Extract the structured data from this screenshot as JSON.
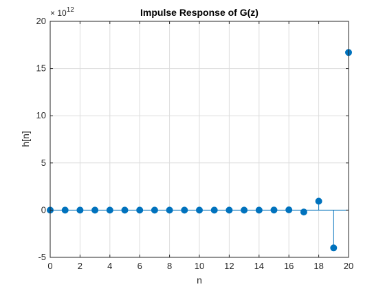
{
  "chart_data": {
    "type": "stem",
    "title": "Impulse Response of G(z)",
    "xlabel": "n",
    "ylabel": "h[n]",
    "y_exponent_base": "× 10",
    "y_exponent_power": "12",
    "xlim": [
      0,
      20
    ],
    "ylim": [
      -5,
      20
    ],
    "xticks": [
      0,
      2,
      4,
      6,
      8,
      10,
      12,
      14,
      16,
      18,
      20
    ],
    "yticks": [
      -5,
      0,
      5,
      10,
      15,
      20
    ],
    "grid": true,
    "series": [
      {
        "x": [
          0,
          1,
          2,
          3,
          4,
          5,
          6,
          7,
          8,
          9,
          10,
          11,
          12,
          13,
          14,
          15,
          16,
          17,
          18,
          19,
          20
        ],
        "y": [
          0,
          0,
          0,
          0,
          0,
          0,
          0,
          0,
          0,
          0,
          0,
          0,
          0,
          0,
          0,
          0.01,
          0.03,
          -0.2,
          0.95,
          -4.0,
          16.7
        ],
        "y_scale_note": "values in units of 10^12"
      }
    ],
    "colors": {
      "stem": "#0072BD",
      "axis": "#262626",
      "grid": "#dcdcdc"
    }
  }
}
